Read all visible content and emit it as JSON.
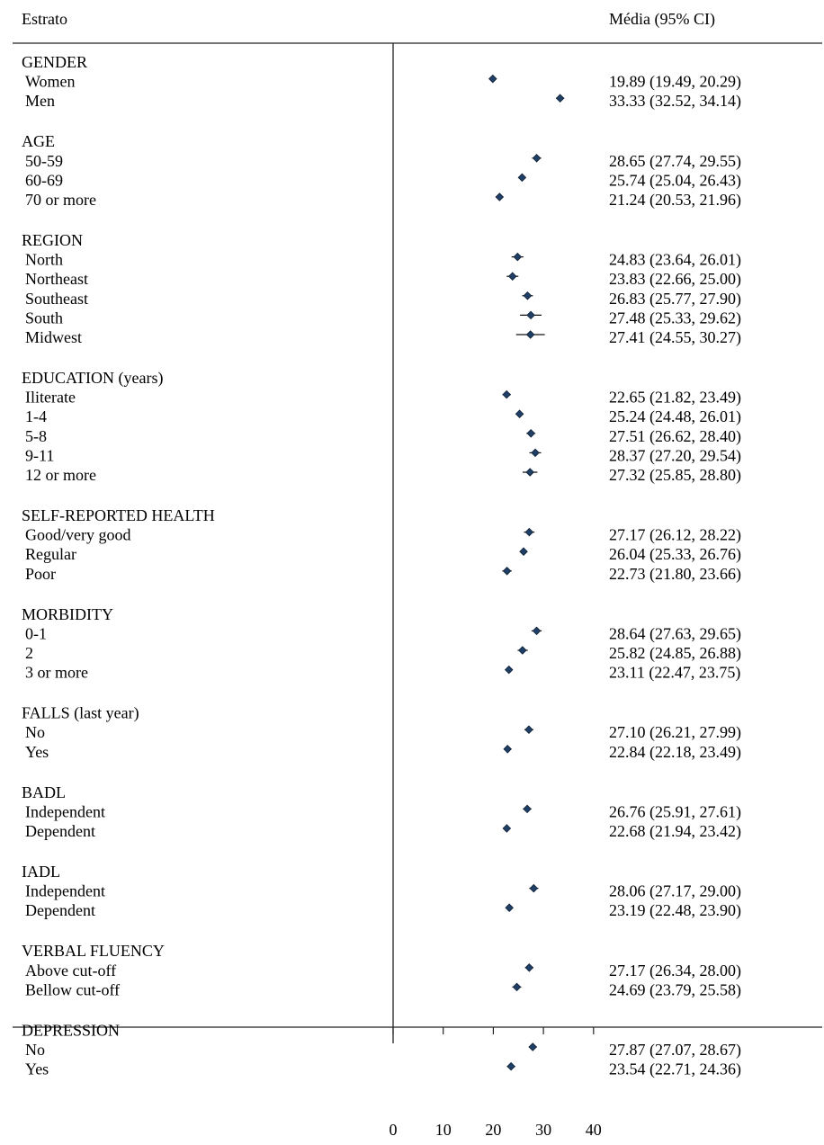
{
  "chart_data": {
    "type": "forest",
    "header_left": "Estrato",
    "header_right": "Média (95% CI)",
    "x_ticks": [
      0,
      10,
      20,
      30,
      40
    ],
    "xlim": [
      0,
      40
    ],
    "grid": false,
    "groups": [
      {
        "label": "GENDER",
        "rows": [
          {
            "label": "Women",
            "mean": 19.89,
            "lo": 19.49,
            "hi": 20.29,
            "text": "19.89 (19.49, 20.29)"
          },
          {
            "label": "Men",
            "mean": 33.33,
            "lo": 32.52,
            "hi": 34.14,
            "text": "33.33 (32.52, 34.14)"
          }
        ]
      },
      {
        "label": "AGE",
        "rows": [
          {
            "label": "50-59",
            "mean": 28.65,
            "lo": 27.74,
            "hi": 29.55,
            "text": "28.65 (27.74, 29.55)"
          },
          {
            "label": "60-69",
            "mean": 25.74,
            "lo": 25.04,
            "hi": 26.43,
            "text": "25.74 (25.04, 26.43)"
          },
          {
            "label": "70 or more",
            "mean": 21.24,
            "lo": 20.53,
            "hi": 21.96,
            "text": "21.24 (20.53, 21.96)"
          }
        ]
      },
      {
        "label": "REGION",
        "rows": [
          {
            "label": "North",
            "mean": 24.83,
            "lo": 23.64,
            "hi": 26.01,
            "text": "24.83 (23.64, 26.01)"
          },
          {
            "label": "Northeast",
            "mean": 23.83,
            "lo": 22.66,
            "hi": 25.0,
            "text": "23.83 (22.66, 25.00)"
          },
          {
            "label": "Southeast",
            "mean": 26.83,
            "lo": 25.77,
            "hi": 27.9,
            "text": "26.83 (25.77, 27.90)"
          },
          {
            "label": "South",
            "mean": 27.48,
            "lo": 25.33,
            "hi": 29.62,
            "text": "27.48 (25.33, 29.62)"
          },
          {
            "label": "Midwest",
            "mean": 27.41,
            "lo": 24.55,
            "hi": 30.27,
            "text": "27.41 (24.55, 30.27)"
          }
        ]
      },
      {
        "label": "EDUCATION (years)",
        "rows": [
          {
            "label": "Iliterate",
            "mean": 22.65,
            "lo": 21.82,
            "hi": 23.49,
            "text": "22.65 (21.82, 23.49)"
          },
          {
            "label": "1-4",
            "mean": 25.24,
            "lo": 24.48,
            "hi": 26.01,
            "text": "25.24 (24.48, 26.01)"
          },
          {
            "label": "5-8",
            "mean": 27.51,
            "lo": 26.62,
            "hi": 28.4,
            "text": "27.51 (26.62, 28.40)"
          },
          {
            "label": "9-11",
            "mean": 28.37,
            "lo": 27.2,
            "hi": 29.54,
            "text": "28.37 (27.20, 29.54)"
          },
          {
            "label": "12 or more",
            "mean": 27.32,
            "lo": 25.85,
            "hi": 28.8,
            "text": "27.32 (25.85, 28.80)"
          }
        ]
      },
      {
        "label": "SELF-REPORTED HEALTH",
        "rows": [
          {
            "label": "Good/very good",
            "mean": 27.17,
            "lo": 26.12,
            "hi": 28.22,
            "text": "27.17 (26.12, 28.22)"
          },
          {
            "label": "Regular",
            "mean": 26.04,
            "lo": 25.33,
            "hi": 26.76,
            "text": "26.04 (25.33, 26.76)"
          },
          {
            "label": "Poor",
            "mean": 22.73,
            "lo": 21.8,
            "hi": 23.66,
            "text": "22.73 (21.80, 23.66)"
          }
        ]
      },
      {
        "label": "MORBIDITY",
        "rows": [
          {
            "label": "0-1",
            "mean": 28.64,
            "lo": 27.63,
            "hi": 29.65,
            "text": "28.64 (27.63, 29.65)"
          },
          {
            "label": "2",
            "mean": 25.82,
            "lo": 24.85,
            "hi": 26.88,
            "text": "25.82 (24.85, 26.88)"
          },
          {
            "label": "3 or more",
            "mean": 23.11,
            "lo": 22.47,
            "hi": 23.75,
            "text": "23.11 (22.47, 23.75)"
          }
        ]
      },
      {
        "label": "FALLS (last year)",
        "rows": [
          {
            "label": "No",
            "mean": 27.1,
            "lo": 26.21,
            "hi": 27.99,
            "text": "27.10 (26.21, 27.99)"
          },
          {
            "label": "Yes",
            "mean": 22.84,
            "lo": 22.18,
            "hi": 23.49,
            "text": "22.84 (22.18, 23.49)"
          }
        ]
      },
      {
        "label": "BADL",
        "rows": [
          {
            "label": "Independent",
            "mean": 26.76,
            "lo": 25.91,
            "hi": 27.61,
            "text": "26.76 (25.91, 27.61)"
          },
          {
            "label": "Dependent",
            "mean": 22.68,
            "lo": 21.94,
            "hi": 23.42,
            "text": "22.68 (21.94, 23.42)"
          }
        ]
      },
      {
        "label": "IADL",
        "rows": [
          {
            "label": "Independent",
            "mean": 28.06,
            "lo": 27.17,
            "hi": 29.0,
            "text": "28.06 (27.17, 29.00)"
          },
          {
            "label": "Dependent",
            "mean": 23.19,
            "lo": 22.48,
            "hi": 23.9,
            "text": "23.19 (22.48, 23.90)"
          }
        ]
      },
      {
        "label": "VERBAL FLUENCY",
        "rows": [
          {
            "label": "Above cut-off",
            "mean": 27.17,
            "lo": 26.34,
            "hi": 28.0,
            "text": "27.17 (26.34, 28.00)"
          },
          {
            "label": "Bellow cut-off",
            "mean": 24.69,
            "lo": 23.79,
            "hi": 25.58,
            "text": "24.69 (23.79, 25.58)"
          }
        ]
      },
      {
        "label": "DEPRESSION",
        "rows": [
          {
            "label": "No",
            "mean": 27.87,
            "lo": 27.07,
            "hi": 28.67,
            "text": "27.87 (27.07, 28.67)"
          },
          {
            "label": "Yes",
            "mean": 23.54,
            "lo": 22.71,
            "hi": 24.36,
            "text": "23.54 (22.71, 24.36)"
          }
        ]
      }
    ],
    "colors": {
      "marker": "#1f3f66",
      "line": "#111111",
      "rule": "#222222"
    }
  }
}
